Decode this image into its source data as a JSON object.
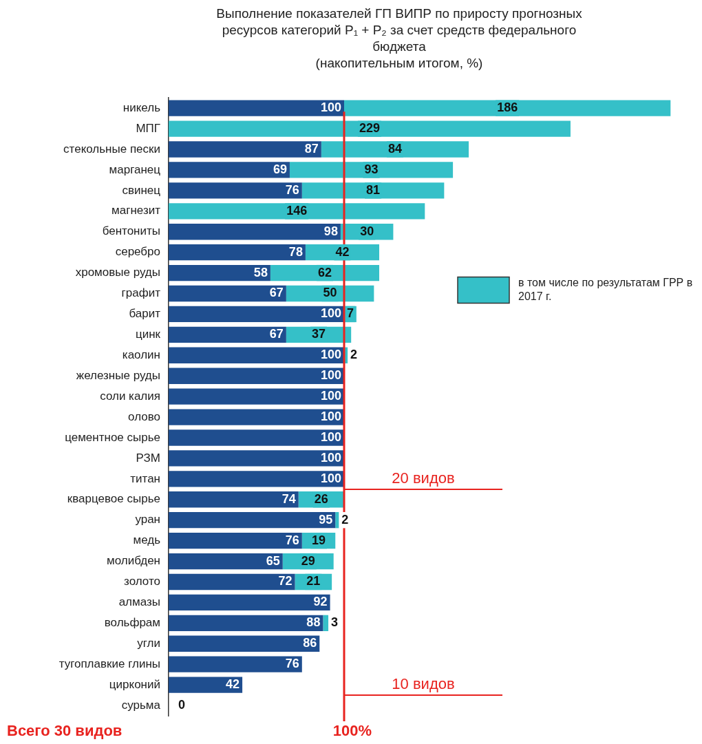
{
  "chart_data": {
    "type": "bar",
    "orientation": "horizontal",
    "stacked": true,
    "title": "Выполнение показателей ГП ВИПР по приросту прогнозных ресурсов категорий P₁ + P₂ за счет средств федерального бюджета",
    "subtitle": "(накопительным итогом, %)",
    "categories": [
      "никель",
      "МПГ",
      "стекольные пески",
      "марганец",
      "свинец",
      "магнезит",
      "бентониты",
      "серебро",
      "хромовые руды",
      "графит",
      "барит",
      "цинк",
      "каолин",
      "железные руды",
      "соли калия",
      "олово",
      "цементное сырье",
      "РЗМ",
      "титан",
      "кварцевое сырье",
      "уран",
      "медь",
      "молибден",
      "золото",
      "алмазы",
      "вольфрам",
      "угли",
      "тугоплавкие глины",
      "цирконий",
      "сурьма"
    ],
    "series": [
      {
        "color": "#1f4e8f",
        "values": [
          100,
          null,
          87,
          69,
          76,
          null,
          98,
          78,
          58,
          67,
          100,
          67,
          100,
          100,
          100,
          100,
          100,
          100,
          100,
          74,
          95,
          76,
          65,
          72,
          92,
          88,
          86,
          76,
          42,
          0
        ]
      },
      {
        "name": "в том числе по результатам ГРР в 2017 г.",
        "color": "#35c0c8",
        "values": [
          186,
          229,
          84,
          93,
          81,
          146,
          30,
          42,
          62,
          50,
          7,
          37,
          2,
          null,
          null,
          null,
          null,
          null,
          null,
          26,
          2,
          19,
          29,
          21,
          null,
          3,
          null,
          null,
          null,
          null
        ]
      }
    ],
    "tick_labels": "y",
    "data_labels": true,
    "legend": "right",
    "ref_lines": [
      {
        "axis": "x",
        "value": 100,
        "label": "100%",
        "color": "#e8231f"
      }
    ],
    "annotations": [
      "20 видов",
      "10 видов",
      "Всего 30 видов"
    ]
  }
}
